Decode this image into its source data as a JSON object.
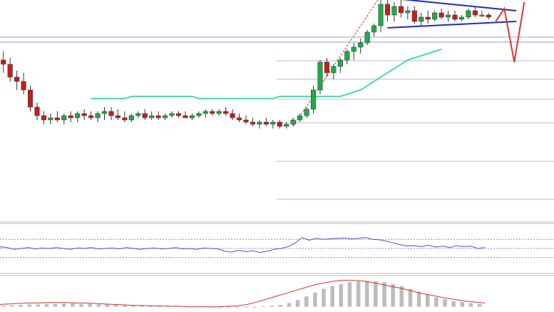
{
  "chart_data": [
    {
      "panel": "price",
      "type": "candlestick",
      "title": "",
      "xlabel": "",
      "ylabel": "",
      "ylim": [
        0,
        100
      ],
      "fib_levels": [
        52,
        59,
        85,
        111,
        139,
        172,
        226,
        279
      ],
      "candles": [
        {
          "o": 72,
          "h": 76,
          "l": 66,
          "c": 70
        },
        {
          "o": 70,
          "h": 73,
          "l": 62,
          "c": 64
        },
        {
          "o": 64,
          "h": 67,
          "l": 58,
          "c": 62
        },
        {
          "o": 62,
          "h": 66,
          "l": 56,
          "c": 58
        },
        {
          "o": 58,
          "h": 60,
          "l": 48,
          "c": 50
        },
        {
          "o": 50,
          "h": 52,
          "l": 44,
          "c": 46
        },
        {
          "o": 46,
          "h": 48,
          "l": 42,
          "c": 44
        },
        {
          "o": 44,
          "h": 47,
          "l": 42,
          "c": 45
        },
        {
          "o": 45,
          "h": 48,
          "l": 43,
          "c": 44
        },
        {
          "o": 44,
          "h": 47,
          "l": 42,
          "c": 46
        },
        {
          "o": 46,
          "h": 48,
          "l": 43,
          "c": 45
        },
        {
          "o": 45,
          "h": 48,
          "l": 43,
          "c": 47
        },
        {
          "o": 47,
          "h": 49,
          "l": 44,
          "c": 46
        },
        {
          "o": 46,
          "h": 48,
          "l": 44,
          "c": 45
        },
        {
          "o": 45,
          "h": 48,
          "l": 43,
          "c": 47
        },
        {
          "o": 47,
          "h": 50,
          "l": 44,
          "c": 48
        },
        {
          "o": 48,
          "h": 50,
          "l": 44,
          "c": 46
        },
        {
          "o": 46,
          "h": 49,
          "l": 44,
          "c": 45
        },
        {
          "o": 45,
          "h": 48,
          "l": 43,
          "c": 44
        },
        {
          "o": 44,
          "h": 47,
          "l": 43,
          "c": 46
        },
        {
          "o": 46,
          "h": 48,
          "l": 45,
          "c": 47
        },
        {
          "o": 47,
          "h": 49,
          "l": 44,
          "c": 45
        },
        {
          "o": 45,
          "h": 48,
          "l": 44,
          "c": 46
        },
        {
          "o": 46,
          "h": 48,
          "l": 44,
          "c": 45
        },
        {
          "o": 45,
          "h": 47,
          "l": 44,
          "c": 46
        },
        {
          "o": 46,
          "h": 48,
          "l": 45,
          "c": 47
        },
        {
          "o": 47,
          "h": 48,
          "l": 45,
          "c": 46
        },
        {
          "o": 46,
          "h": 48,
          "l": 45,
          "c": 45
        },
        {
          "o": 45,
          "h": 47,
          "l": 44,
          "c": 46
        },
        {
          "o": 46,
          "h": 48,
          "l": 45,
          "c": 47
        },
        {
          "o": 47,
          "h": 49,
          "l": 45,
          "c": 48
        },
        {
          "o": 48,
          "h": 49,
          "l": 46,
          "c": 47
        },
        {
          "o": 47,
          "h": 49,
          "l": 46,
          "c": 48
        },
        {
          "o": 48,
          "h": 50,
          "l": 46,
          "c": 47
        },
        {
          "o": 47,
          "h": 49,
          "l": 44,
          "c": 45
        },
        {
          "o": 45,
          "h": 47,
          "l": 43,
          "c": 44
        },
        {
          "o": 44,
          "h": 46,
          "l": 42,
          "c": 43
        },
        {
          "o": 43,
          "h": 45,
          "l": 41,
          "c": 42
        },
        {
          "o": 42,
          "h": 44,
          "l": 40,
          "c": 43
        },
        {
          "o": 43,
          "h": 45,
          "l": 41,
          "c": 42
        },
        {
          "o": 42,
          "h": 44,
          "l": 40,
          "c": 43
        },
        {
          "o": 43,
          "h": 44,
          "l": 40,
          "c": 41
        },
        {
          "o": 41,
          "h": 43,
          "l": 40,
          "c": 42
        },
        {
          "o": 42,
          "h": 45,
          "l": 41,
          "c": 44
        },
        {
          "o": 44,
          "h": 47,
          "l": 43,
          "c": 46
        },
        {
          "o": 46,
          "h": 50,
          "l": 45,
          "c": 49
        },
        {
          "o": 49,
          "h": 60,
          "l": 47,
          "c": 58
        },
        {
          "o": 58,
          "h": 72,
          "l": 56,
          "c": 71
        },
        {
          "o": 71,
          "h": 73,
          "l": 64,
          "c": 66
        },
        {
          "o": 66,
          "h": 70,
          "l": 63,
          "c": 69
        },
        {
          "o": 69,
          "h": 73,
          "l": 66,
          "c": 72
        },
        {
          "o": 72,
          "h": 77,
          "l": 70,
          "c": 76
        },
        {
          "o": 76,
          "h": 80,
          "l": 72,
          "c": 78
        },
        {
          "o": 78,
          "h": 82,
          "l": 75,
          "c": 80
        },
        {
          "o": 80,
          "h": 86,
          "l": 79,
          "c": 85
        },
        {
          "o": 85,
          "h": 89,
          "l": 83,
          "c": 88
        },
        {
          "o": 88,
          "h": 100,
          "l": 85,
          "c": 98
        },
        {
          "o": 98,
          "h": 102,
          "l": 90,
          "c": 93
        },
        {
          "o": 93,
          "h": 99,
          "l": 90,
          "c": 97
        },
        {
          "o": 97,
          "h": 100,
          "l": 92,
          "c": 94
        },
        {
          "o": 94,
          "h": 97,
          "l": 91,
          "c": 95
        },
        {
          "o": 95,
          "h": 97,
          "l": 89,
          "c": 90
        },
        {
          "o": 90,
          "h": 94,
          "l": 88,
          "c": 92
        },
        {
          "o": 92,
          "h": 95,
          "l": 89,
          "c": 91
        },
        {
          "o": 91,
          "h": 95,
          "l": 90,
          "c": 94
        },
        {
          "o": 94,
          "h": 96,
          "l": 91,
          "c": 92
        },
        {
          "o": 92,
          "h": 95,
          "l": 90,
          "c": 93
        },
        {
          "o": 93,
          "h": 95,
          "l": 90,
          "c": 91
        },
        {
          "o": 91,
          "h": 93,
          "l": 90,
          "c": 92
        },
        {
          "o": 92,
          "h": 96,
          "l": 91,
          "c": 95
        },
        {
          "o": 95,
          "h": 97,
          "l": 92,
          "c": 93
        },
        {
          "o": 93,
          "h": 95,
          "l": 92,
          "c": 93
        },
        {
          "o": 93,
          "h": 94,
          "l": 91,
          "c": 92
        }
      ],
      "moving_average": [
        54,
        54,
        54,
        54,
        54,
        54,
        55,
        55,
        55,
        55,
        55,
        55,
        55,
        55,
        55,
        55,
        54,
        54,
        54,
        54,
        54,
        54,
        54,
        54,
        54,
        54,
        54,
        54,
        55,
        55,
        55,
        55,
        55,
        55,
        55,
        55,
        55,
        55,
        56,
        57,
        58,
        60,
        62,
        64,
        66,
        68,
        70,
        72,
        73,
        74,
        75,
        76,
        77
      ],
      "trendlines": [
        {
          "name": "upper",
          "start": [
            57,
            101
          ],
          "end": [
            74,
            95
          ]
        },
        {
          "name": "lower",
          "start": [
            57,
            87
          ],
          "end": [
            74,
            90
          ]
        }
      ],
      "colors": {
        "bull": "#23a847",
        "bear": "#c41e1e",
        "ma": "#3dd6a0",
        "trend": "#1d2dbd",
        "dashed": "#e03030",
        "grid": "#b8b8e0"
      }
    },
    {
      "panel": "oscillator",
      "type": "line",
      "levels": [
        30,
        50,
        70
      ],
      "values": [
        54,
        52,
        48,
        50,
        52,
        49,
        51,
        50,
        52,
        50,
        48,
        51,
        50,
        52,
        49,
        50,
        51,
        49,
        52,
        50,
        48,
        50,
        51,
        49,
        50,
        52,
        49,
        50,
        48,
        51,
        50,
        49,
        44,
        42,
        46,
        43,
        45,
        41,
        44,
        48,
        50,
        54,
        62,
        74,
        68,
        72,
        70,
        71,
        72,
        73,
        71,
        72,
        74,
        70,
        69,
        66,
        62,
        58,
        55,
        56,
        54,
        57,
        53,
        55,
        52,
        56,
        54,
        55,
        50,
        52
      ],
      "ylim": [
        0,
        100
      ],
      "color": "#4c56c0"
    },
    {
      "panel": "histogram",
      "type": "bar",
      "values": [
        2,
        3,
        4,
        5,
        5,
        6,
        6,
        7,
        7,
        6,
        6,
        5,
        5,
        4,
        4,
        3,
        3,
        3,
        2,
        2,
        2,
        1,
        1,
        1,
        0,
        0,
        0,
        -1,
        -1,
        0,
        1,
        2,
        4,
        8,
        14,
        22,
        30,
        38,
        44,
        48,
        52,
        54,
        55,
        54,
        52,
        48,
        44,
        38,
        32,
        26,
        20,
        16,
        12,
        10,
        8,
        6
      ],
      "signal": [
        5,
        6,
        7,
        8,
        8,
        9,
        9,
        9,
        8,
        8,
        7,
        6,
        5,
        4,
        3,
        3,
        2,
        2,
        1,
        1,
        0,
        0,
        0,
        0,
        1,
        2,
        5,
        10,
        16,
        22,
        28,
        34,
        40,
        46,
        50,
        54,
        56,
        56,
        55,
        52,
        48,
        44,
        40,
        35,
        30,
        26,
        22,
        18,
        15,
        12,
        10,
        8
      ],
      "ylim": [
        -5,
        60
      ],
      "colors": {
        "bars": "#bcbcbc",
        "signal": "#d93030"
      }
    }
  ]
}
